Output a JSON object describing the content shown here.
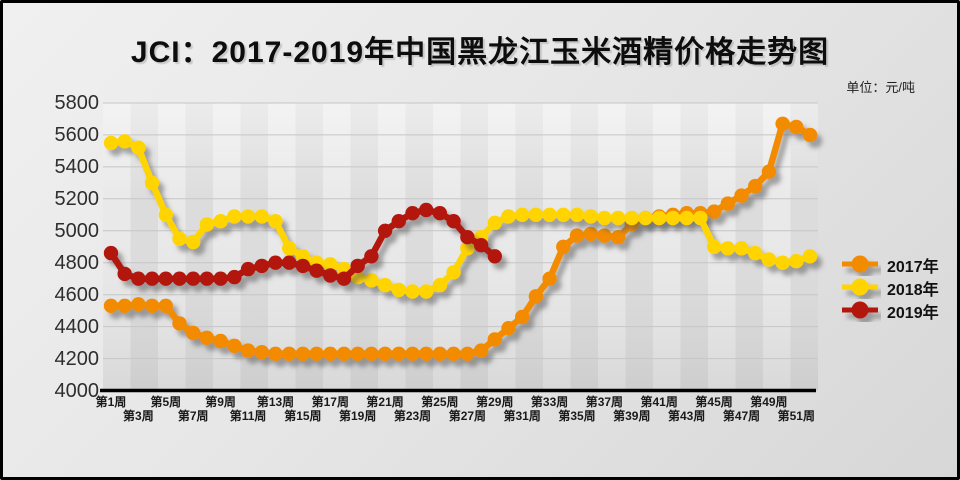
{
  "title": "JCI：2017-2019年中国黑龙江玉米酒精价格走势图",
  "unit_label": "单位：元/吨",
  "chart_data": {
    "type": "line",
    "title": "JCI：2017-2019年中国黑龙江玉米酒精价格走势图",
    "unit": "元/吨",
    "xlabel": "",
    "ylabel": "",
    "grid": true,
    "legend_position": "right",
    "y_axis": {
      "min": 4000,
      "max": 5800,
      "step": 200,
      "ticks": [
        5800,
        5600,
        5400,
        5200,
        5000,
        4800,
        4600,
        4400,
        4200,
        4000
      ]
    },
    "x_axis": {
      "weeks_total": 52,
      "tick_labels": [
        "第1周",
        "第3周",
        "第5周",
        "第7周",
        "第9周",
        "第11周",
        "第13周",
        "第15周",
        "第17周",
        "第19周",
        "第21周",
        "第23周",
        "第25周",
        "第27周",
        "第29周",
        "第31周",
        "第33周",
        "第35周",
        "第37周",
        "第39周",
        "第41周",
        "第43周",
        "第45周",
        "第47周",
        "第49周",
        "第51周"
      ]
    },
    "series": [
      {
        "name": "2017年",
        "color": "#F38B00",
        "values": [
          4530,
          4530,
          4540,
          4530,
          4530,
          4420,
          4360,
          4330,
          4310,
          4280,
          4250,
          4240,
          4230,
          4230,
          4230,
          4230,
          4230,
          4230,
          4230,
          4230,
          4230,
          4230,
          4230,
          4230,
          4230,
          4230,
          4230,
          4250,
          4320,
          4390,
          4460,
          4590,
          4700,
          4900,
          4970,
          4980,
          4970,
          4960,
          5040,
          5080,
          5090,
          5100,
          5110,
          5110,
          5120,
          5170,
          5220,
          5280,
          5370,
          5670,
          5650,
          5600
        ]
      },
      {
        "name": "2018年",
        "color": "#FFD400",
        "values": [
          5550,
          5560,
          5520,
          5300,
          5100,
          4950,
          4930,
          5040,
          5060,
          5090,
          5090,
          5090,
          5060,
          4890,
          4840,
          4800,
          4790,
          4760,
          4710,
          4690,
          4660,
          4630,
          4620,
          4620,
          4660,
          4740,
          4890,
          4960,
          5050,
          5090,
          5100,
          5100,
          5100,
          5100,
          5100,
          5090,
          5080,
          5080,
          5080,
          5080,
          5080,
          5080,
          5080,
          5080,
          4900,
          4890,
          4890,
          4860,
          4820,
          4800,
          4810,
          4840
        ]
      },
      {
        "name": "2019年",
        "color": "#B21511",
        "values": [
          4860,
          4730,
          4700,
          4700,
          4700,
          4700,
          4700,
          4700,
          4700,
          4710,
          4760,
          4780,
          4800,
          4800,
          4780,
          4750,
          4720,
          4700,
          4780,
          4840,
          5000,
          5060,
          5110,
          5130,
          5110,
          5060,
          4960,
          4910,
          4840
        ]
      }
    ]
  }
}
